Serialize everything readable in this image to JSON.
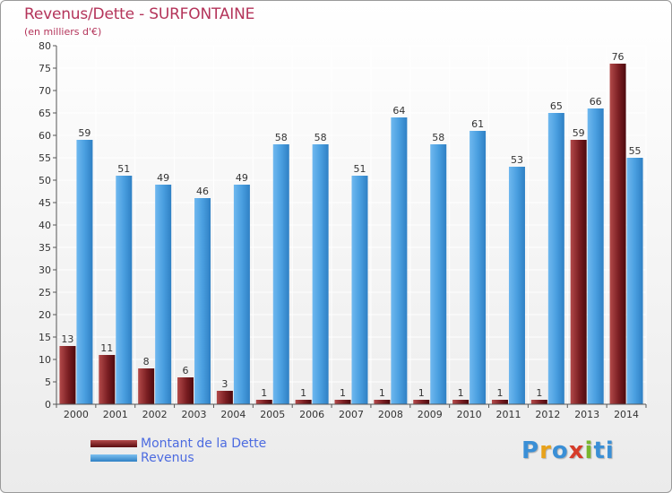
{
  "header": {
    "title": "Revenus/Dette - SURFONTAINE",
    "subtitle": "(en milliers d'€)"
  },
  "legend": {
    "debt_label": "Montant de la Dette",
    "revenue_label": "Revenus"
  },
  "logo": {
    "text": "Proxiti",
    "letters": [
      "P",
      "r",
      "o",
      "x",
      "i",
      "ti"
    ]
  },
  "colors": {
    "debt": "#7a1e22",
    "debt_light": "#b34a4a",
    "revenue": "#4a9fe0",
    "revenue_dark": "#2f80c4",
    "title": "#b4345a",
    "legend_text": "#4c6be0"
  },
  "chart_data": {
    "type": "bar",
    "title": "Revenus/Dette - SURFONTAINE",
    "ylabel": "(en milliers d'€)",
    "xlabel": "",
    "categories": [
      "2000",
      "2001",
      "2002",
      "2003",
      "2004",
      "2005",
      "2006",
      "2007",
      "2008",
      "2009",
      "2010",
      "2011",
      "2012",
      "2013",
      "2014"
    ],
    "series": [
      {
        "name": "Montant de la Dette",
        "values": [
          13,
          11,
          8,
          6,
          3,
          1,
          1,
          1,
          1,
          1,
          1,
          1,
          1,
          59,
          76
        ]
      },
      {
        "name": "Revenus",
        "values": [
          59,
          51,
          49,
          46,
          49,
          58,
          58,
          51,
          64,
          58,
          61,
          53,
          65,
          66,
          55
        ]
      }
    ],
    "ylim": [
      0,
      80
    ],
    "yticks": [
      0,
      5,
      10,
      15,
      20,
      25,
      30,
      35,
      40,
      45,
      50,
      55,
      60,
      65,
      70,
      75,
      80
    ],
    "grid": true,
    "legend_position": "bottom-left"
  }
}
